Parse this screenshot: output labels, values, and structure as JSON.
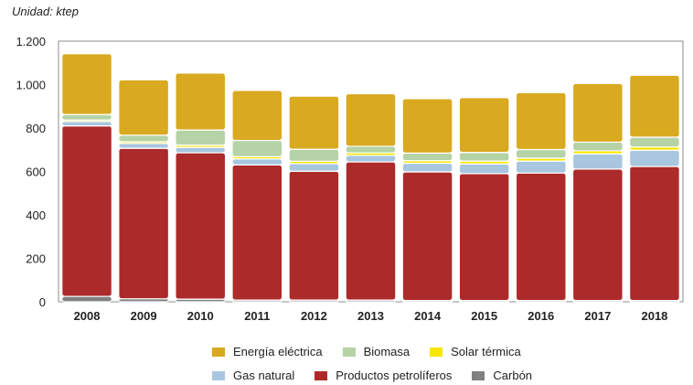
{
  "chart_data": {
    "type": "bar",
    "stacked": true,
    "unit_label": "Unidad: ktep",
    "categories": [
      "2008",
      "2009",
      "2010",
      "2011",
      "2012",
      "2013",
      "2014",
      "2015",
      "2016",
      "2017",
      "2018"
    ],
    "ylim": [
      0,
      1200
    ],
    "yticks": [
      0,
      200,
      400,
      600,
      800,
      1000,
      1200
    ],
    "ytick_labels": [
      "0",
      "200",
      "400",
      "600",
      "800",
      "1.000",
      "1.200"
    ],
    "grid": false,
    "series": [
      {
        "name": "Carbón",
        "color": "#808080",
        "values": [
          25,
          14,
          12,
          8,
          8,
          8,
          6,
          6,
          6,
          6,
          6
        ]
      },
      {
        "name": "Productos petrolíferos",
        "color": "#ad2a2a",
        "values": [
          785,
          693,
          674,
          622,
          593,
          636,
          592,
          584,
          587,
          605,
          617
        ]
      },
      {
        "name": "Gas natural",
        "color": "#a9c6e0",
        "values": [
          20,
          22,
          25,
          28,
          35,
          30,
          40,
          45,
          55,
          70,
          75
        ]
      },
      {
        "name": "Solar térmica",
        "color": "#f7e600",
        "values": [
          7,
          8,
          10,
          10,
          11,
          12,
          12,
          13,
          13,
          14,
          15
        ]
      },
      {
        "name": "Biomasa",
        "color": "#b5d3a6",
        "values": [
          25,
          30,
          70,
          75,
          55,
          30,
          35,
          40,
          40,
          40,
          45
        ]
      },
      {
        "name": "Energía eléctrica",
        "color": "#d9a91f",
        "values": [
          280,
          255,
          262,
          230,
          245,
          242,
          250,
          252,
          262,
          270,
          285
        ]
      }
    ],
    "legend": {
      "rows": [
        [
          "Energía eléctrica",
          "Biomasa",
          "Solar térmica"
        ],
        [
          "Gas natural",
          "Productos petrolíferos",
          "Carbón"
        ]
      ],
      "placement": "bottom"
    }
  }
}
